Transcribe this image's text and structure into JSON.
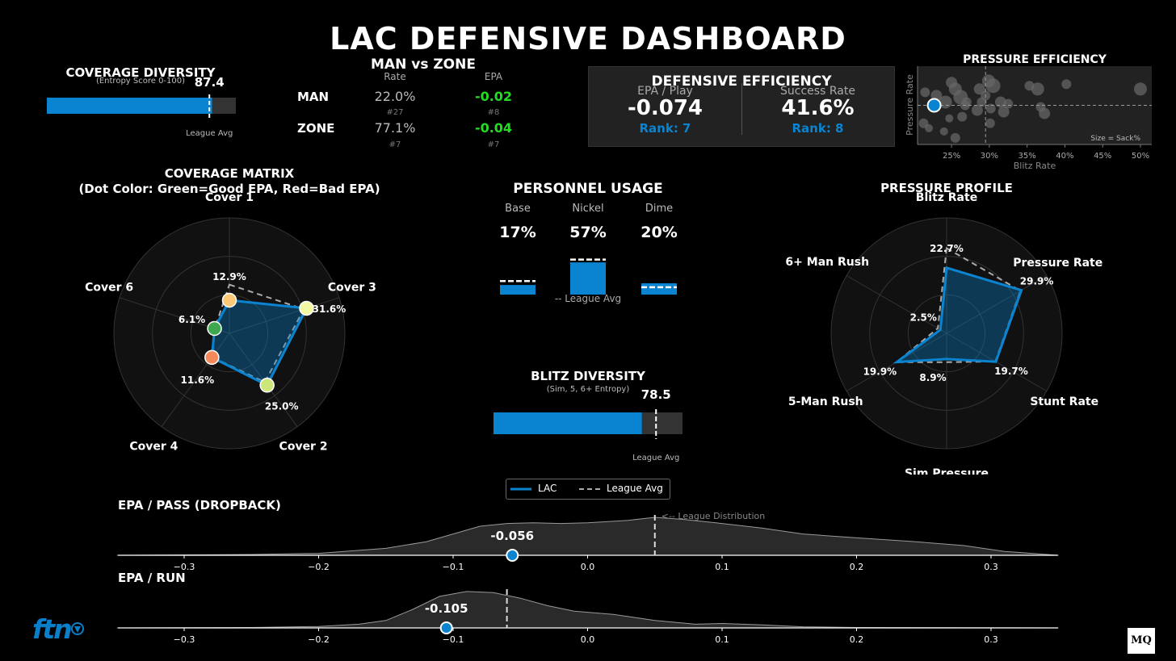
{
  "title": "LAC DEFENSIVE DASHBOARD",
  "coverage_diversity": {
    "title": "COVERAGE DIVERSITY",
    "subtitle": "(Entropy Score 0-100)",
    "value_label": "87.4",
    "value": 87.4,
    "league_avg": 86.0,
    "max": 100,
    "league_label": "League Avg"
  },
  "man_zone": {
    "title": "MAN vs ZONE",
    "col_rate": "Rate",
    "col_epa": "EPA",
    "rows": [
      {
        "label": "MAN",
        "rate": "22.0%",
        "rate_rank": "#27",
        "epa": "-0.02",
        "epa_rank": "#8"
      },
      {
        "label": "ZONE",
        "rate": "77.1%",
        "rate_rank": "#7",
        "epa": "-0.04",
        "epa_rank": "#7"
      }
    ]
  },
  "def_eff": {
    "title": "DEFENSIVE EFFICIENCY",
    "left_label": "EPA / Play",
    "left_value": "-0.074",
    "left_rank": "Rank: 7",
    "right_label": "Success Rate",
    "right_value": "41.6%",
    "right_rank": "Rank: 8"
  },
  "pressure_eff": {
    "title": "PRESSURE EFFICIENCY",
    "ylabel": "Pressure Rate",
    "xlabel": "Blitz Rate",
    "size_note": "Size = Sack%",
    "ticks": [
      "25%",
      "30%",
      "35%",
      "40%",
      "45%",
      "50%"
    ],
    "tick_values": [
      25,
      30,
      35,
      40,
      45,
      50
    ],
    "xlim": [
      20.5,
      51.5
    ],
    "ylim": [
      18,
      42
    ],
    "league_x": 29.5,
    "league_y": 30,
    "team": {
      "x": 22.7,
      "y": 30
    },
    "others": [
      {
        "x": 21.5,
        "y": 34,
        "s": 6
      },
      {
        "x": 23,
        "y": 33,
        "s": 7
      },
      {
        "x": 24.2,
        "y": 31,
        "s": 8
      },
      {
        "x": 25,
        "y": 37,
        "s": 7
      },
      {
        "x": 25.5,
        "y": 35,
        "s": 8
      },
      {
        "x": 26.2,
        "y": 32.5,
        "s": 9
      },
      {
        "x": 27,
        "y": 31,
        "s": 6
      },
      {
        "x": 24.7,
        "y": 26,
        "s": 5
      },
      {
        "x": 26.4,
        "y": 26.5,
        "s": 6
      },
      {
        "x": 22,
        "y": 23,
        "s": 5
      },
      {
        "x": 25.5,
        "y": 20,
        "s": 6
      },
      {
        "x": 28.7,
        "y": 35,
        "s": 7
      },
      {
        "x": 29.9,
        "y": 37.5,
        "s": 8
      },
      {
        "x": 30.5,
        "y": 36,
        "s": 9
      },
      {
        "x": 29.5,
        "y": 33,
        "s": 6
      },
      {
        "x": 29,
        "y": 31,
        "s": 6
      },
      {
        "x": 28.4,
        "y": 28.5,
        "s": 7
      },
      {
        "x": 30.2,
        "y": 29,
        "s": 6
      },
      {
        "x": 31.5,
        "y": 31,
        "s": 7
      },
      {
        "x": 32.5,
        "y": 30.5,
        "s": 6
      },
      {
        "x": 31.9,
        "y": 28,
        "s": 7
      },
      {
        "x": 30.1,
        "y": 24.5,
        "s": 6
      },
      {
        "x": 24,
        "y": 22,
        "s": 5
      },
      {
        "x": 35.3,
        "y": 36,
        "s": 6
      },
      {
        "x": 36.4,
        "y": 35,
        "s": 8
      },
      {
        "x": 37.3,
        "y": 27.5,
        "s": 7
      },
      {
        "x": 36.8,
        "y": 29.5,
        "s": 6
      },
      {
        "x": 40.2,
        "y": 36.5,
        "s": 6
      },
      {
        "x": 50,
        "y": 35,
        "s": 8
      },
      {
        "x": 21.3,
        "y": 24.5,
        "s": 6
      },
      {
        "x": 26.8,
        "y": 30,
        "s": 6
      }
    ]
  },
  "coverage_matrix": {
    "title1": "COVERAGE MATRIX",
    "title2": "(Dot Color: Green=Good EPA, Red=Bad EPA)"
  },
  "personnel": {
    "title": "PERSONNEL USAGE",
    "league_label": "-- League Avg",
    "items": [
      {
        "label": "Base",
        "value_label": "17%",
        "value": 17,
        "league": 24
      },
      {
        "label": "Nickel",
        "value_label": "57%",
        "value": 57,
        "league": 62
      },
      {
        "label": "Dime",
        "value_label": "20%",
        "value": 20,
        "league": 13
      }
    ]
  },
  "blitz_diversity": {
    "title": "BLITZ DIVERSITY",
    "subtitle": "(Sim, 5, 6+ Entropy)",
    "value_label": "78.5",
    "value": 78.5,
    "league_avg": 86.0,
    "max": 100,
    "league_label": "League Avg"
  },
  "pressure_profile": {
    "title": "PRESSURE PROFILE"
  },
  "legend": {
    "team": "LAC",
    "league": "League Avg"
  },
  "epa_pass": {
    "title": "EPA / PASS (DROPBACK)",
    "value_label": "-0.056",
    "value": -0.056,
    "league": 0.05,
    "note": "<-- League Distribution",
    "xlim": [
      -0.35,
      0.35
    ],
    "ticks": [
      -0.3,
      -0.2,
      -0.1,
      0.0,
      0.1,
      0.2,
      0.3
    ],
    "tick_labels": [
      "−0.3",
      "−0.2",
      "−0.1",
      "0.0",
      "0.1",
      "0.2",
      "0.3"
    ],
    "density": [
      [
        -0.35,
        0.0
      ],
      [
        -0.3,
        0.01
      ],
      [
        -0.25,
        0.02
      ],
      [
        -0.2,
        0.05
      ],
      [
        -0.15,
        0.18
      ],
      [
        -0.12,
        0.35
      ],
      [
        -0.1,
        0.55
      ],
      [
        -0.08,
        0.75
      ],
      [
        -0.06,
        0.82
      ],
      [
        -0.04,
        0.84
      ],
      [
        -0.02,
        0.82
      ],
      [
        0.0,
        0.84
      ],
      [
        0.03,
        0.9
      ],
      [
        0.05,
        0.98
      ],
      [
        0.07,
        0.93
      ],
      [
        0.1,
        0.82
      ],
      [
        0.13,
        0.7
      ],
      [
        0.16,
        0.55
      ],
      [
        0.2,
        0.45
      ],
      [
        0.24,
        0.36
      ],
      [
        0.28,
        0.25
      ],
      [
        0.31,
        0.1
      ],
      [
        0.35,
        0.0
      ]
    ]
  },
  "epa_run": {
    "title": "EPA / RUN",
    "value_label": "-0.105",
    "value": -0.105,
    "league": -0.06,
    "xlim": [
      -0.35,
      0.35
    ],
    "ticks": [
      -0.3,
      -0.2,
      -0.1,
      0.0,
      0.1,
      0.2,
      0.3
    ],
    "tick_labels": [
      "−0.3",
      "−0.2",
      "−0.1",
      "0.0",
      "0.1",
      "0.2",
      "0.3"
    ],
    "density": [
      [
        -0.35,
        0.0
      ],
      [
        -0.25,
        0.01
      ],
      [
        -0.2,
        0.04
      ],
      [
        -0.17,
        0.1
      ],
      [
        -0.15,
        0.2
      ],
      [
        -0.13,
        0.5
      ],
      [
        -0.11,
        0.85
      ],
      [
        -0.09,
        0.98
      ],
      [
        -0.07,
        0.95
      ],
      [
        -0.05,
        0.8
      ],
      [
        -0.03,
        0.6
      ],
      [
        -0.01,
        0.45
      ],
      [
        0.02,
        0.36
      ],
      [
        0.05,
        0.2
      ],
      [
        0.08,
        0.1
      ],
      [
        0.1,
        0.12
      ],
      [
        0.13,
        0.08
      ],
      [
        0.16,
        0.03
      ],
      [
        0.2,
        0.01
      ],
      [
        0.35,
        0.0
      ]
    ]
  },
  "logos": {
    "left": "ftn",
    "right": "MQ"
  },
  "chart_data": [
    {
      "type": "radar",
      "title": "COVERAGE MATRIX",
      "categories": [
        "Cover 1",
        "Cover 3",
        "Cover 2",
        "Cover 4",
        "Cover 6"
      ],
      "team_labels": [
        "12.9%",
        "31.6%",
        "25.0%",
        "11.6%",
        "6.1%"
      ],
      "team": [
        12.9,
        31.6,
        25.0,
        11.6,
        6.1
      ],
      "league": [
        19.0,
        30.5,
        23.5,
        11.5,
        6.0
      ],
      "rmax": 45,
      "dot_colors": [
        "#fdc979",
        "#f2f7a4",
        "#cde67a",
        "#f48a5a",
        "#3fa84e"
      ]
    },
    {
      "type": "radar",
      "title": "PRESSURE PROFILE",
      "categories": [
        "Blitz Rate",
        "Pressure Rate",
        "Stunt Rate",
        "Sim Pressure",
        "5-Man Rush",
        "6+ Man Rush"
      ],
      "team_labels": [
        "22.7%",
        "29.9%",
        "19.7%",
        "8.9%",
        "19.9%",
        "2.5%"
      ],
      "team": [
        22.7,
        29.9,
        19.7,
        8.9,
        19.9,
        2.5
      ],
      "league": [
        29.5,
        29.5,
        19.5,
        10.0,
        20.0,
        3.5
      ],
      "rmax": 40
    }
  ]
}
